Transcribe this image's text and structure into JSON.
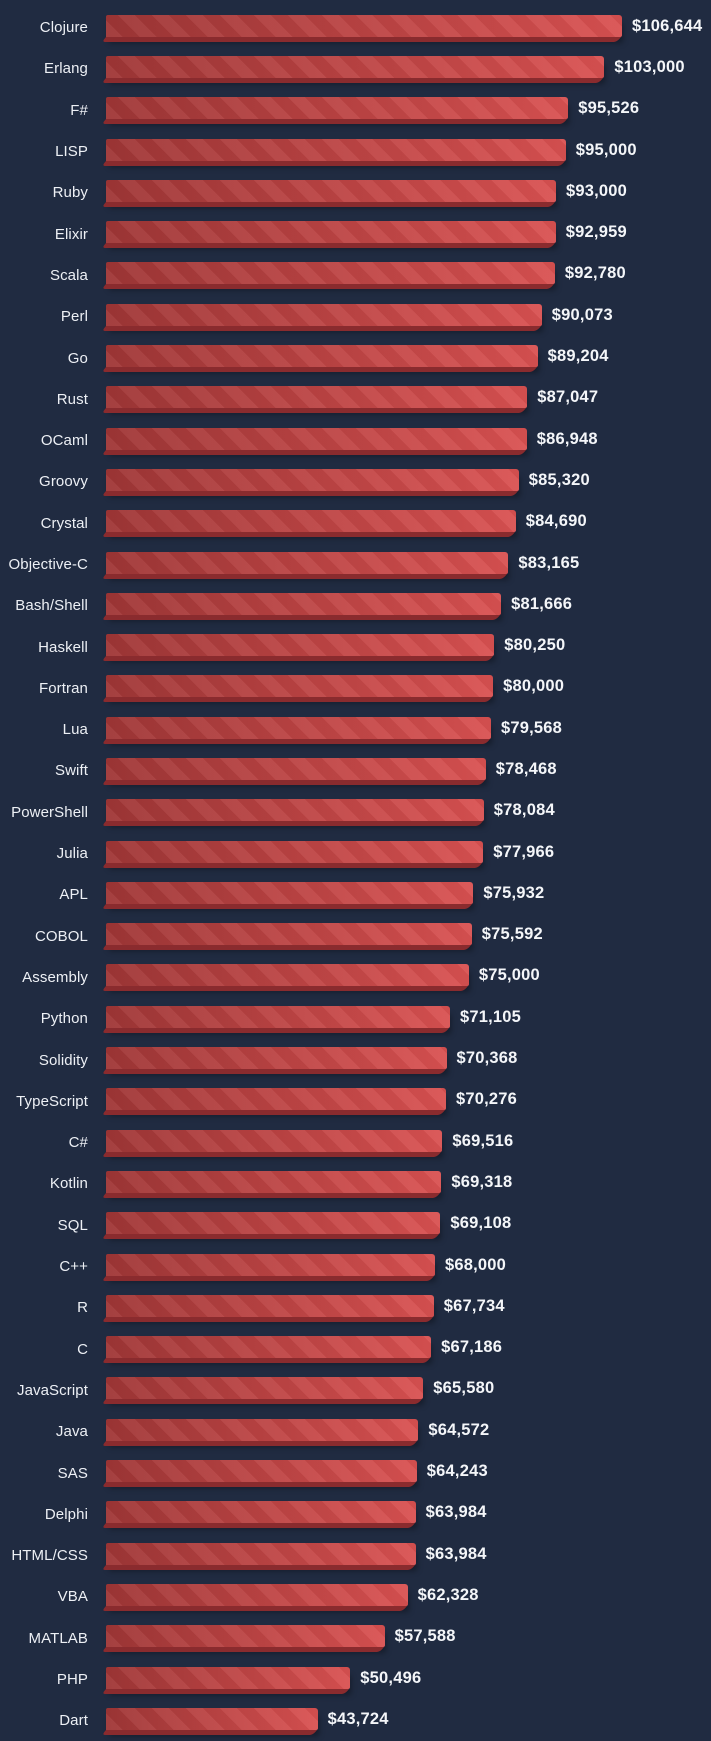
{
  "chart_data": {
    "type": "bar",
    "orientation": "horizontal",
    "title": "",
    "xlabel": "",
    "ylabel": "",
    "xlim": [
      0,
      106644
    ],
    "grid": false,
    "legend": false,
    "value_prefix": "$",
    "categories": [
      "Clojure",
      "Erlang",
      "F#",
      "LISP",
      "Ruby",
      "Elixir",
      "Scala",
      "Perl",
      "Go",
      "Rust",
      "OCaml",
      "Groovy",
      "Crystal",
      "Objective-C",
      "Bash/Shell",
      "Haskell",
      "Fortran",
      "Lua",
      "Swift",
      "PowerShell",
      "Julia",
      "APL",
      "COBOL",
      "Assembly",
      "Python",
      "Solidity",
      "TypeScript",
      "C#",
      "Kotlin",
      "SQL",
      "C++",
      "R",
      "C",
      "JavaScript",
      "Java",
      "SAS",
      "Delphi",
      "HTML/CSS",
      "VBA",
      "MATLAB",
      "PHP",
      "Dart"
    ],
    "values": [
      106644,
      103000,
      95526,
      95000,
      93000,
      92959,
      92780,
      90073,
      89204,
      87047,
      86948,
      85320,
      84690,
      83165,
      81666,
      80250,
      80000,
      79568,
      78468,
      78084,
      77966,
      75932,
      75592,
      75000,
      71105,
      70368,
      70276,
      69516,
      69318,
      69108,
      68000,
      67734,
      67186,
      65580,
      64572,
      64243,
      63984,
      63984,
      62328,
      57588,
      50496,
      43724
    ],
    "value_labels": [
      "$106,644",
      "$103,000",
      "$95,526",
      "$95,000",
      "$93,000",
      "$92,959",
      "$92,780",
      "$90,073",
      "$89,204",
      "$87,047",
      "$86,948",
      "$85,320",
      "$84,690",
      "$83,165",
      "$81,666",
      "$80,250",
      "$80,000",
      "$79,568",
      "$78,468",
      "$78,084",
      "$77,966",
      "$75,932",
      "$75,592",
      "$75,000",
      "$71,105",
      "$70,368",
      "$70,276",
      "$69,516",
      "$69,318",
      "$69,108",
      "$68,000",
      "$67,734",
      "$67,186",
      "$65,580",
      "$64,572",
      "$64,243",
      "$63,984",
      "$63,984",
      "$62,328",
      "$57,588",
      "$50,496",
      "$43,724"
    ]
  },
  "style": {
    "background_color": "#202b41",
    "bar_gradient_start": "#9f3636",
    "bar_gradient_end": "#d95151",
    "bar_bottom_edge_color": "#8a2b2e",
    "label_text_color": "#edf0f5",
    "value_text_color": "#f4f6f9"
  }
}
